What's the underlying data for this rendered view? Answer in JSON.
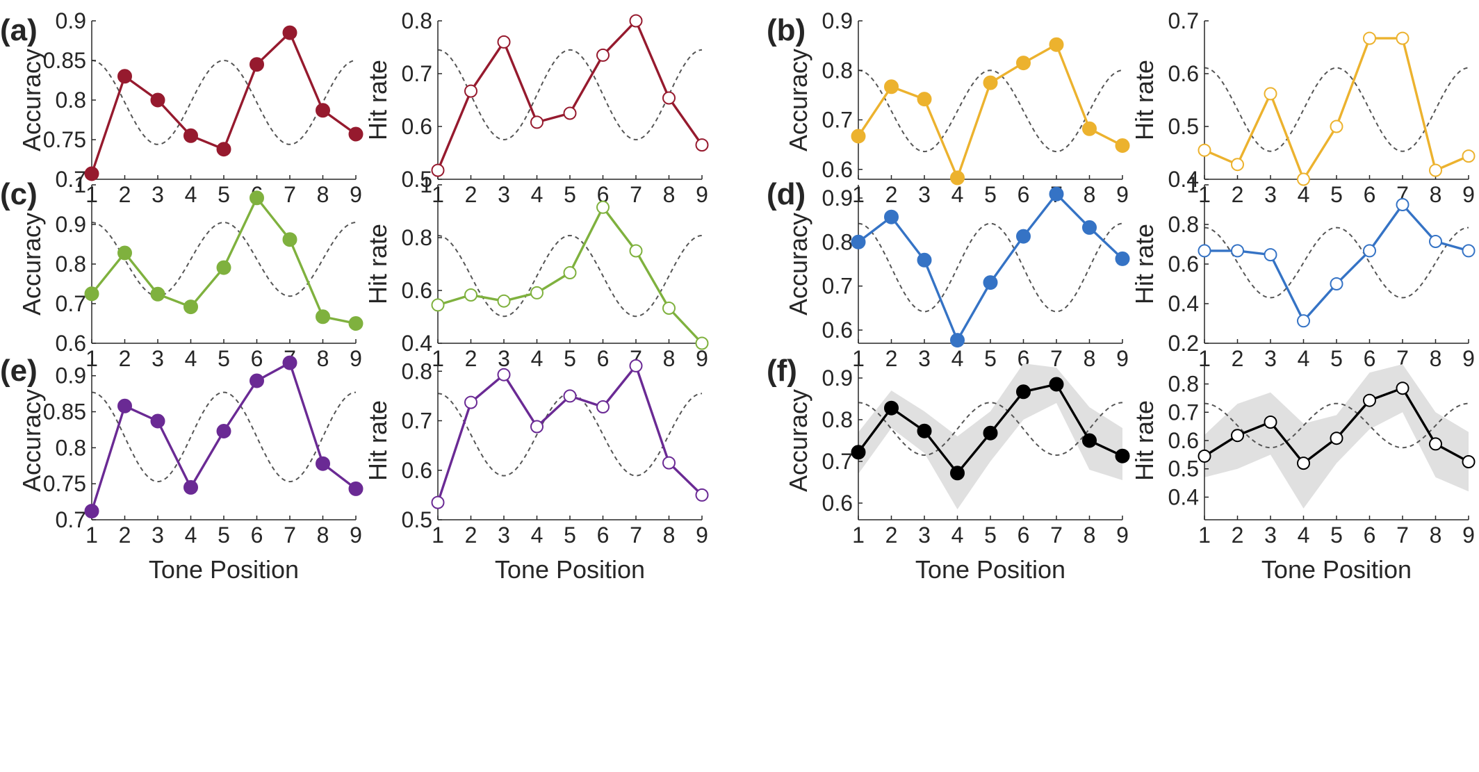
{
  "colors": {
    "a": "#961a2e",
    "b": "#ecb22e",
    "c": "#7fb13e",
    "d": "#3573c5",
    "e": "#6a2a94",
    "f": "#000000"
  },
  "chart_data": [
    {
      "panel": "(a)",
      "type": "line",
      "marker": "filled",
      "ylabel": "Accuracy",
      "x": [
        1,
        2,
        3,
        4,
        5,
        6,
        7,
        8,
        9
      ],
      "values": [
        0.707,
        0.83,
        0.8,
        0.755,
        0.738,
        0.845,
        0.885,
        0.787,
        0.757
      ],
      "ylim": [
        0.7,
        0.9
      ],
      "yticks": [
        "0.7",
        "0.75",
        "0.8",
        "0.85",
        "0.9"
      ],
      "reference_wave": {
        "mid": 0.797,
        "amp": 0.053
      }
    },
    {
      "panel": "(a)",
      "type": "line",
      "marker": "open",
      "ylabel": "Hit rate",
      "x": [
        1,
        2,
        3,
        4,
        5,
        6,
        7,
        8,
        9
      ],
      "values": [
        0.517,
        0.667,
        0.76,
        0.608,
        0.625,
        0.735,
        0.8,
        0.654,
        0.565
      ],
      "ylim": [
        0.5,
        0.8
      ],
      "yticks": [
        "0.5",
        "0.6",
        "0.7",
        "0.8"
      ],
      "reference_wave": {
        "mid": 0.66,
        "amp": 0.085
      }
    },
    {
      "panel": "(b)",
      "type": "line",
      "marker": "filled",
      "ylabel": "Accuracy",
      "x": [
        1,
        2,
        3,
        4,
        5,
        6,
        7,
        8,
        9
      ],
      "values": [
        0.667,
        0.767,
        0.742,
        0.583,
        0.775,
        0.815,
        0.852,
        0.682,
        0.648
      ],
      "ylim": [
        0.58,
        0.9
      ],
      "yticks": [
        "0.6",
        "0.7",
        "0.8",
        "0.9"
      ],
      "reference_wave": {
        "mid": 0.718,
        "amp": 0.082
      }
    },
    {
      "panel": "(b)",
      "type": "line",
      "marker": "open",
      "ylabel": "Hit rate",
      "x": [
        1,
        2,
        3,
        4,
        5,
        6,
        7,
        8,
        9
      ],
      "values": [
        0.455,
        0.428,
        0.562,
        0.4,
        0.5,
        0.667,
        0.667,
        0.417,
        0.444
      ],
      "ylim": [
        0.4,
        0.7
      ],
      "yticks": [
        "0.4",
        "0.5",
        "0.6",
        "0.7"
      ],
      "reference_wave": {
        "mid": 0.532,
        "amp": 0.079
      }
    },
    {
      "panel": "(c)",
      "type": "line",
      "marker": "filled",
      "ylabel": "Accuracy",
      "x": [
        1,
        2,
        3,
        4,
        5,
        6,
        7,
        8,
        9
      ],
      "values": [
        0.725,
        0.828,
        0.724,
        0.692,
        0.791,
        0.967,
        0.862,
        0.667,
        0.65
      ],
      "ylim": [
        0.6,
        1.0
      ],
      "yticks": [
        "0.6",
        "0.7",
        "0.8",
        "0.9",
        "1"
      ],
      "reference_wave": {
        "mid": 0.812,
        "amp": 0.093
      }
    },
    {
      "panel": "(c)",
      "type": "line",
      "marker": "open",
      "ylabel": "Hit rate",
      "x": [
        1,
        2,
        3,
        4,
        5,
        6,
        7,
        8,
        9
      ],
      "values": [
        0.545,
        0.583,
        0.56,
        0.591,
        0.667,
        0.915,
        0.75,
        0.533,
        0.4
      ],
      "ylim": [
        0.4,
        1.0
      ],
      "yticks": [
        "0.4",
        "0.6",
        "0.8",
        "1"
      ],
      "reference_wave": {
        "mid": 0.655,
        "amp": 0.153
      }
    },
    {
      "panel": "(d)",
      "type": "line",
      "marker": "filled",
      "ylabel": "Accuracy",
      "x": [
        1,
        2,
        3,
        4,
        5,
        6,
        7,
        8,
        9
      ],
      "values": [
        0.8,
        0.857,
        0.759,
        0.577,
        0.708,
        0.813,
        0.909,
        0.833,
        0.762
      ],
      "ylim": [
        0.57,
        0.93
      ],
      "yticks": [
        "0.6",
        "0.7",
        "0.8",
        "0.9"
      ],
      "reference_wave": {
        "mid": 0.742,
        "amp": 0.1
      }
    },
    {
      "panel": "(d)",
      "type": "line",
      "marker": "open",
      "ylabel": "Hit rate",
      "x": [
        1,
        2,
        3,
        4,
        5,
        6,
        7,
        8,
        9
      ],
      "values": [
        0.667,
        0.667,
        0.647,
        0.313,
        0.5,
        0.667,
        0.9,
        0.714,
        0.667
      ],
      "ylim": [
        0.2,
        1.0
      ],
      "yticks": [
        "0.2",
        "0.4",
        "0.6",
        "0.8",
        "1"
      ],
      "reference_wave": {
        "mid": 0.607,
        "amp": 0.177
      }
    },
    {
      "panel": "(e)",
      "type": "line",
      "marker": "filled",
      "ylabel": "Accuracy",
      "xlabel": "Tone Position",
      "x": [
        1,
        2,
        3,
        4,
        5,
        6,
        7,
        8,
        9
      ],
      "values": [
        0.712,
        0.858,
        0.837,
        0.745,
        0.823,
        0.893,
        0.918,
        0.778,
        0.743
      ],
      "ylim": [
        0.7,
        0.92
      ],
      "yticks": [
        "0.7",
        "0.75",
        "0.8",
        "0.85",
        "0.9"
      ],
      "reference_wave": {
        "mid": 0.815,
        "amp": 0.062
      }
    },
    {
      "panel": "(e)",
      "type": "line",
      "marker": "open",
      "ylabel": "Hit rate",
      "xlabel": "Tone Position",
      "x": [
        1,
        2,
        3,
        4,
        5,
        6,
        7,
        8,
        9
      ],
      "values": [
        0.535,
        0.737,
        0.793,
        0.688,
        0.75,
        0.728,
        0.811,
        0.615,
        0.55
      ],
      "ylim": [
        0.5,
        0.82
      ],
      "yticks": [
        "0.5",
        "0.6",
        "0.7",
        "0.8"
      ],
      "reference_wave": {
        "mid": 0.672,
        "amp": 0.083
      }
    },
    {
      "panel": "(f)",
      "type": "line",
      "marker": "filled",
      "ylabel": "Accuracy",
      "xlabel": "Tone Position",
      "x": [
        1,
        2,
        3,
        4,
        5,
        6,
        7,
        8,
        9
      ],
      "values": [
        0.722,
        0.828,
        0.773,
        0.672,
        0.768,
        0.867,
        0.885,
        0.75,
        0.713
      ],
      "band_upper": [
        0.77,
        0.87,
        0.82,
        0.76,
        0.82,
        0.935,
        0.925,
        0.83,
        0.78
      ],
      "band_lower": [
        0.67,
        0.78,
        0.72,
        0.585,
        0.7,
        0.8,
        0.84,
        0.68,
        0.655
      ],
      "ylim": [
        0.56,
        0.94
      ],
      "yticks": [
        "0.6",
        "0.7",
        "0.8",
        "0.9"
      ],
      "reference_wave": {
        "mid": 0.778,
        "amp": 0.063
      }
    },
    {
      "panel": "(f)",
      "type": "line",
      "marker": "open",
      "ylabel": "Hit rate",
      "xlabel": "Tone Position",
      "x": [
        1,
        2,
        3,
        4,
        5,
        6,
        7,
        8,
        9
      ],
      "values": [
        0.545,
        0.618,
        0.665,
        0.52,
        0.608,
        0.742,
        0.785,
        0.588,
        0.525
      ],
      "band_upper": [
        0.62,
        0.73,
        0.77,
        0.66,
        0.69,
        0.84,
        0.87,
        0.7,
        0.63
      ],
      "band_lower": [
        0.47,
        0.5,
        0.55,
        0.36,
        0.52,
        0.64,
        0.7,
        0.47,
        0.42
      ],
      "ylim": [
        0.32,
        0.88
      ],
      "yticks": [
        "0.4",
        "0.5",
        "0.6",
        "0.7",
        "0.8"
      ],
      "reference_wave": {
        "mid": 0.653,
        "amp": 0.078
      }
    }
  ]
}
